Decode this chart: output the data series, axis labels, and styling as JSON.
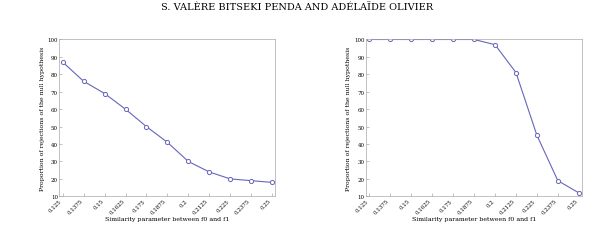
{
  "title": "S. VALÈRE BITSEKI PENDA AND ADÉLAÏDE OLIVIER",
  "x_values": [
    0.125,
    0.1375,
    0.15,
    0.1625,
    0.175,
    0.1875,
    0.2,
    0.2125,
    0.225,
    0.2375,
    0.25
  ],
  "y1_values": [
    87,
    76,
    69,
    60,
    50,
    41,
    30,
    24,
    20,
    19,
    18
  ],
  "y2_values": [
    100,
    100,
    100,
    100,
    100,
    100,
    97,
    81,
    45,
    19,
    12
  ],
  "xlabel": "Similarity parameter between f0 and f1",
  "ylabel": "Proportion of rejections of the null hypothesis",
  "ylim": [
    10,
    100
  ],
  "xticks": [
    0.125,
    0.1375,
    0.15,
    0.1625,
    0.175,
    0.1875,
    0.2,
    0.2125,
    0.225,
    0.2375,
    0.25
  ],
  "xtick_labels": [
    "0.125",
    "0.1375",
    "0.15",
    "0.1625",
    "0.175",
    "0.1875",
    "0.2",
    "0.2125",
    "0.225",
    "0.2375",
    "0.25"
  ],
  "yticks": [
    10,
    20,
    30,
    40,
    50,
    60,
    70,
    80,
    90,
    100
  ],
  "ytick_labels": [
    "10",
    "20",
    "30",
    "40",
    "50",
    "60",
    "70",
    "80",
    "90",
    "100"
  ],
  "line_color": "#6666bb",
  "marker": "o",
  "marker_size": 3,
  "line_width": 0.8,
  "title_fontsize": 7,
  "axis_label_fontsize": 4.5,
  "tick_fontsize": 4.0
}
